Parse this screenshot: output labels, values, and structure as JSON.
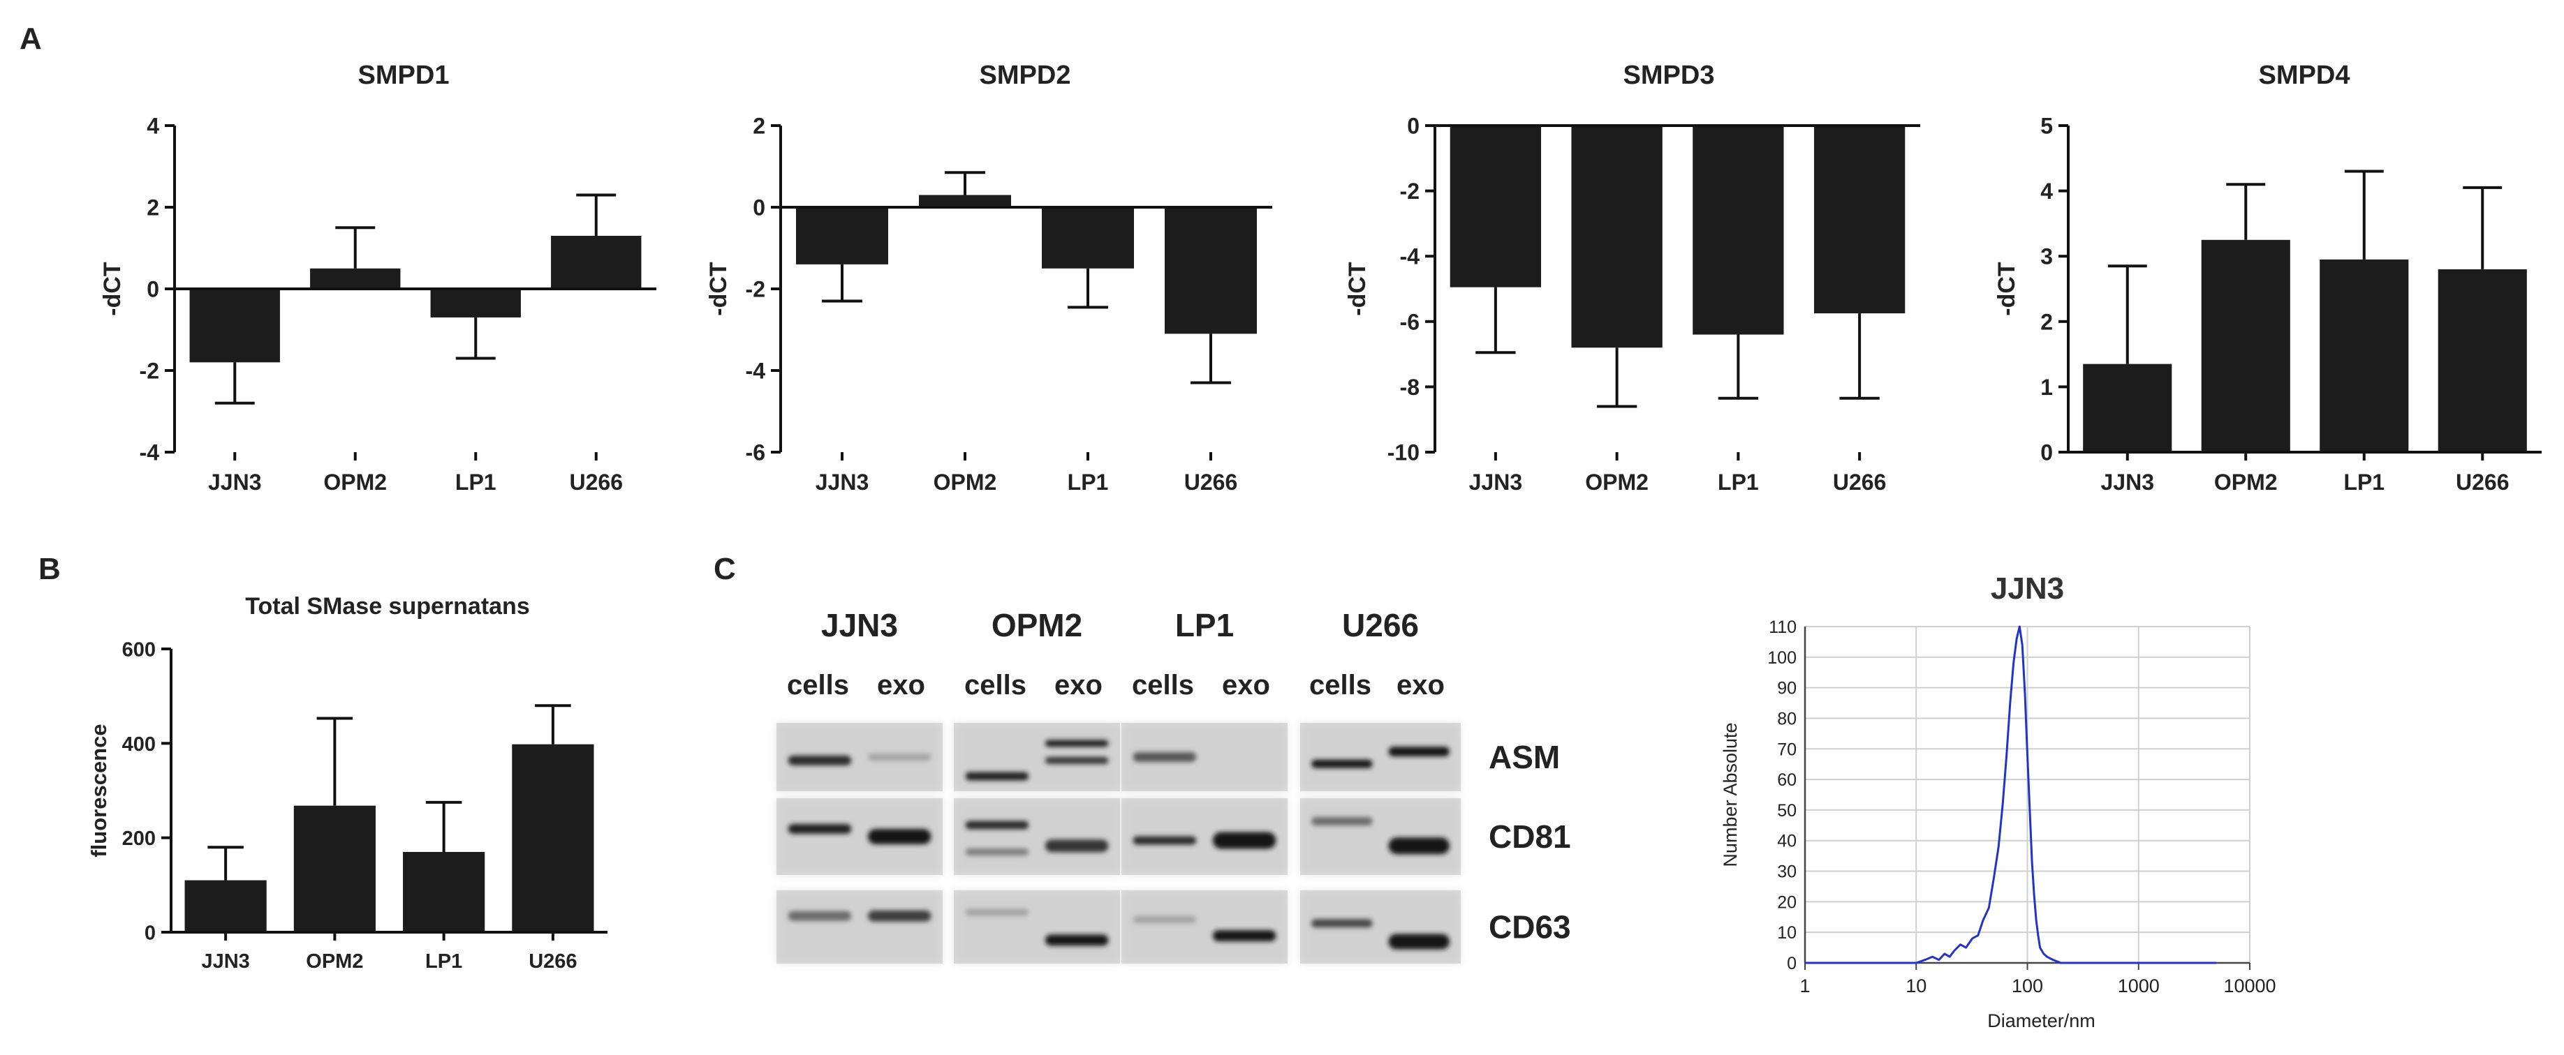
{
  "panel_labels": {
    "A": "A",
    "B": "B",
    "C": "C"
  },
  "chart_data": [
    {
      "id": "smpd1",
      "type": "bar",
      "title": "SMPD1",
      "ylabel": "-dCT",
      "xlabel": "",
      "categories": [
        "JJN3",
        "OPM2",
        "LP1",
        "U266"
      ],
      "values": [
        -1.8,
        0.5,
        -0.7,
        1.3
      ],
      "errors": [
        1.0,
        1.0,
        1.0,
        1.0
      ],
      "ylim": [
        -4,
        4
      ],
      "yticks": [
        "-4",
        "-2",
        "0",
        "2",
        "4"
      ],
      "grid": false,
      "bar_color": "#1c1c1c"
    },
    {
      "id": "smpd2",
      "type": "bar",
      "title": "SMPD2",
      "ylabel": "-dCT",
      "xlabel": "",
      "categories": [
        "JJN3",
        "OPM2",
        "LP1",
        "U266"
      ],
      "values": [
        -1.4,
        0.3,
        -1.5,
        -3.1
      ],
      "errors": [
        0.9,
        0.55,
        0.95,
        1.2
      ],
      "ylim": [
        -6,
        2
      ],
      "yticks": [
        "-6",
        "-4",
        "-2",
        "0",
        "2"
      ],
      "grid": false,
      "bar_color": "#1c1c1c"
    },
    {
      "id": "smpd3",
      "type": "bar",
      "title": "SMPD3",
      "ylabel": "-dCT",
      "xlabel": "",
      "categories": [
        "JJN3",
        "OPM2",
        "LP1",
        "U266"
      ],
      "values": [
        -4.95,
        -6.8,
        -6.4,
        -5.75
      ],
      "errors": [
        2.0,
        1.8,
        1.95,
        2.6
      ],
      "ylim": [
        -10,
        0
      ],
      "yticks": [
        "-10",
        "-8",
        "-6",
        "-4",
        "-2",
        "0"
      ],
      "grid": false,
      "bar_color": "#1c1c1c"
    },
    {
      "id": "smpd4",
      "type": "bar",
      "title": "SMPD4",
      "ylabel": "-dCT",
      "xlabel": "",
      "categories": [
        "JJN3",
        "OPM2",
        "LP1",
        "U266"
      ],
      "values": [
        1.35,
        3.25,
        2.95,
        2.8
      ],
      "errors": [
        1.5,
        0.85,
        1.35,
        1.25
      ],
      "ylim": [
        0,
        5
      ],
      "yticks": [
        "0",
        "1",
        "2",
        "3",
        "4",
        "5"
      ],
      "grid": false,
      "bar_color": "#1c1c1c"
    },
    {
      "id": "smase",
      "type": "bar",
      "title": "Total SMase supernatans",
      "ylabel": "fluorescence",
      "xlabel": "",
      "categories": [
        "JJN3",
        "OPM2",
        "LP1",
        "U266"
      ],
      "values": [
        110,
        268,
        170,
        398
      ],
      "errors": [
        70,
        185,
        105,
        82
      ],
      "ylim": [
        0,
        600
      ],
      "yticks": [
        "0",
        "200",
        "400",
        "600"
      ],
      "grid": false,
      "bar_color": "#1c1c1c"
    },
    {
      "id": "jjn3_nta",
      "type": "line",
      "title": "JJN3",
      "xlabel": "Diameter/nm",
      "ylabel": "Number Absolute",
      "xscale": "log",
      "xlim": [
        1,
        10000
      ],
      "ylim": [
        0,
        110
      ],
      "xticks": [
        "1",
        "10",
        "100",
        "1000",
        "10000"
      ],
      "yticks": [
        "0",
        "10",
        "20",
        "30",
        "40",
        "50",
        "60",
        "70",
        "80",
        "90",
        "100",
        "110"
      ],
      "grid": true,
      "line_color": "#2233cc",
      "x": [
        1,
        10,
        12,
        14,
        16,
        18,
        20,
        22,
        25,
        28,
        32,
        36,
        40,
        45,
        50,
        55,
        60,
        65,
        70,
        75,
        80,
        85,
        90,
        95,
        100,
        105,
        110,
        115,
        120,
        125,
        130,
        140,
        150,
        170,
        200,
        250,
        300,
        5000
      ],
      "y": [
        0,
        0,
        1,
        2,
        1,
        3,
        2,
        4,
        6,
        5,
        8,
        9,
        14,
        18,
        28,
        38,
        52,
        68,
        85,
        98,
        106,
        110,
        104,
        88,
        68,
        50,
        33,
        22,
        14,
        9,
        5,
        3,
        2,
        1,
        0,
        0,
        0,
        0
      ]
    }
  ],
  "western_blot": {
    "cell_lines": [
      "JJN3",
      "OPM2",
      "LP1",
      "U266"
    ],
    "lane_labels": {
      "cells": "cells",
      "exo": "exo"
    },
    "markers": [
      "ASM",
      "CD81",
      "CD63"
    ]
  }
}
